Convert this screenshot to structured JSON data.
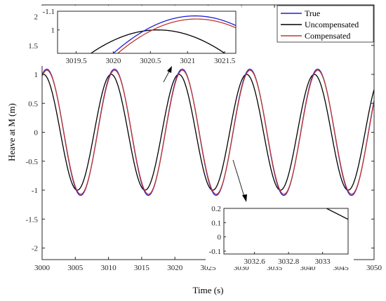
{
  "chart_data": {
    "type": "line",
    "xlabel": "Time (s)",
    "ylabel": "Heave at M (m)",
    "xlim": [
      3000,
      3050
    ],
    "ylim": [
      -2.2,
      2.2
    ],
    "xticks": [
      3000,
      3005,
      3010,
      3015,
      3020,
      3025,
      3030,
      3035,
      3040,
      3045,
      3050
    ],
    "yticks": [
      -2,
      -1.5,
      -1,
      -0.5,
      0,
      0.5,
      1,
      1.5,
      2
    ],
    "grid": false,
    "legend_position": "top-right",
    "series": [
      {
        "name": "True",
        "color": "#1f1fd6",
        "amplitude": 1.09,
        "period": 10.2,
        "peak_time": 3000.7
      },
      {
        "name": "Uncompensated",
        "color": "#000000",
        "amplitude": 1.0,
        "period": 10.2,
        "peak_time": 3000.2
      },
      {
        "name": "Compensated",
        "color": "#c0392b",
        "amplitude": 1.07,
        "period": 10.2,
        "peak_time": 3000.72
      }
    ],
    "insets": [
      {
        "xlim": [
          3019.25,
          3021.65
        ],
        "ylim": [
          0.85,
          1.12
        ],
        "xticks": [
          3019.5,
          3020,
          3020.5,
          3021,
          3021.5
        ],
        "yticks": [
          1
        ],
        "ytick_labels": [
          "1"
        ],
        "top_label": "1.1"
      },
      {
        "xlim": [
          3032.42,
          3033.15
        ],
        "ylim": [
          -0.12,
          0.2
        ],
        "xticks": [
          3032.6,
          3032.8,
          3033
        ],
        "yticks": [
          -0.1,
          0,
          0.1,
          0.2
        ],
        "ytick_labels": [
          "-0.1",
          "0",
          "0.1",
          "0.2"
        ]
      }
    ]
  }
}
